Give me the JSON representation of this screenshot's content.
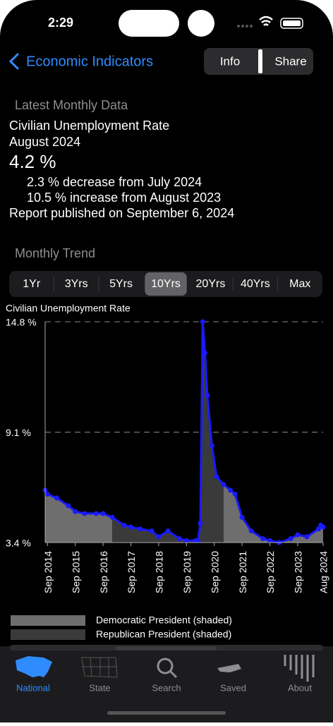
{
  "status": {
    "time": "2:29"
  },
  "nav": {
    "title": "Economic Indicators",
    "buttons": [
      "Info",
      "Share"
    ]
  },
  "latest": {
    "heading": "Latest Monthly Data",
    "series_name": "Civilian Unemployment Rate",
    "period": "August 2024",
    "value": "4.2 %",
    "changes": [
      "2.3 % decrease from July 2024",
      "10.5 % increase from August 2023"
    ],
    "published": "Report published on September 6, 2024"
  },
  "trend": {
    "heading": "Monthly Trend",
    "ranges": [
      "1Yr",
      "3Yrs",
      "5Yrs",
      "10Yrs",
      "20Yrs",
      "40Yrs",
      "Max"
    ],
    "selected": 3
  },
  "chart_data": {
    "type": "line",
    "title": "Civilian Unemployment Rate",
    "x": [
      "2014-08",
      "2014-09",
      "2015-01",
      "2015-06",
      "2015-09",
      "2016-01",
      "2016-06",
      "2016-09",
      "2017-01",
      "2017-06",
      "2017-09",
      "2018-01",
      "2018-06",
      "2018-09",
      "2019-01",
      "2019-06",
      "2019-09",
      "2020-01",
      "2020-02",
      "2020-03",
      "2020-04",
      "2020-05",
      "2020-06",
      "2020-08",
      "2020-10",
      "2021-01",
      "2021-04",
      "2021-06",
      "2021-09",
      "2022-01",
      "2022-06",
      "2022-09",
      "2023-01",
      "2023-06",
      "2023-09",
      "2024-01",
      "2024-06",
      "2024-07",
      "2024-08"
    ],
    "series": [
      {
        "name": "Civilian Unemployment Rate",
        "color": "#1a1aff",
        "values": [
          6.1,
          5.9,
          5.7,
          5.3,
          5.0,
          4.9,
          4.9,
          4.9,
          4.7,
          4.3,
          4.2,
          4.1,
          4.0,
          3.7,
          4.0,
          3.6,
          3.5,
          3.5,
          3.5,
          4.4,
          14.8,
          13.2,
          11.0,
          8.4,
          6.8,
          6.4,
          6.1,
          5.9,
          4.7,
          4.0,
          3.6,
          3.5,
          3.4,
          3.6,
          3.8,
          3.7,
          4.1,
          4.3,
          4.2
        ]
      }
    ],
    "xlim": [
      "2014-08",
      "2024-08"
    ],
    "xticks": [
      {
        "value": "2014-09",
        "label": "Sep 2014"
      },
      {
        "value": "2015-09",
        "label": "Sep 2015"
      },
      {
        "value": "2016-09",
        "label": "Sep 2016"
      },
      {
        "value": "2017-09",
        "label": "Sep 2017"
      },
      {
        "value": "2018-09",
        "label": "Sep 2018"
      },
      {
        "value": "2019-09",
        "label": "Sep 2019"
      },
      {
        "value": "2020-09",
        "label": "Sep 2020"
      },
      {
        "value": "2021-09",
        "label": "Sep 2021"
      },
      {
        "value": "2022-09",
        "label": "Sep 2022"
      },
      {
        "value": "2023-09",
        "label": "Sep 2023"
      },
      {
        "value": "2024-08",
        "label": "Aug 2024"
      }
    ],
    "ylim": [
      3.4,
      14.8
    ],
    "yticks": [
      {
        "value": 3.4,
        "label": "3.4 %"
      },
      {
        "value": 9.1,
        "label": "9.1 %"
      },
      {
        "value": 14.8,
        "label": "14.8 %"
      }
    ],
    "grid": true,
    "legend": [
      {
        "name": "Democratic President (shaded)",
        "color": "#6e6e6e"
      },
      {
        "name": "Republican President (shaded)",
        "color": "#3a3a3a"
      }
    ],
    "periods": [
      {
        "start": "2014-08",
        "end": "2017-01",
        "legend": 0
      },
      {
        "start": "2017-01",
        "end": "2021-01",
        "legend": 1
      },
      {
        "start": "2021-01",
        "end": "2024-08",
        "legend": 0
      }
    ]
  },
  "tabs": {
    "items": [
      "National",
      "State",
      "Search",
      "Saved",
      "About"
    ],
    "selected": 0
  }
}
